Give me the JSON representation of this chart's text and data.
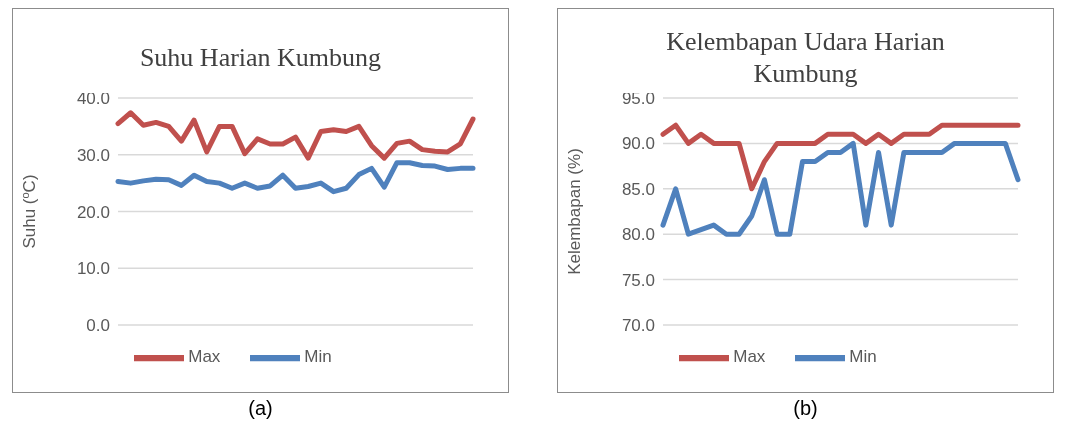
{
  "chart_data": [
    {
      "type": "line",
      "title": "Suhu Harian Kumbung",
      "ylabel": "Suhu ($^{o}$C)",
      "annotations": [
        "(a)"
      ],
      "categories": [
        null,
        null,
        null,
        null,
        null,
        null,
        null,
        null,
        null,
        null,
        null,
        null,
        null,
        null,
        null,
        null,
        null,
        null,
        null,
        null,
        null,
        null,
        null,
        null,
        null,
        null,
        null,
        null,
        null
      ],
      "series": [
        {
          "name": "Min",
          "color": "#4f81bd",
          "values": [
            25.3,
            25.0,
            25.4,
            25.7,
            25.6,
            24.6,
            26.4,
            25.3,
            25.0,
            24.1,
            25.0,
            24.1,
            24.5,
            26.4,
            24.1,
            24.4,
            25.0,
            23.5,
            24.1,
            26.5,
            27.6,
            24.3,
            28.6,
            28.6,
            28.1,
            28.0,
            27.4,
            27.6,
            27.6
          ]
        },
        {
          "name": "Max",
          "color": "#c0504d",
          "values": [
            35.5,
            37.4,
            35.2,
            35.7,
            35.0,
            32.4,
            36.1,
            30.5,
            35.0,
            35.0,
            30.2,
            32.8,
            31.9,
            31.9,
            33.1,
            29.4,
            34.1,
            34.4,
            34.1,
            35.0,
            31.6,
            29.4,
            32.0,
            32.4,
            30.9,
            30.6,
            30.5,
            31.9,
            36.3
          ]
        }
      ],
      "ylim": [
        0,
        40
      ],
      "yticks": [
        {
          "value": 0,
          "label": "0.0"
        },
        {
          "value": 10,
          "label": "10.0"
        },
        {
          "value": 20,
          "label": "20.0"
        },
        {
          "value": 30,
          "label": "30.0"
        },
        {
          "value": 40,
          "label": "40.0"
        }
      ],
      "grid": "y",
      "legend": "bottom",
      "tick_labels": "y"
    },
    {
      "type": "line",
      "title": "Kelembapan Udara Harian Kumbung",
      "ylabel": "Kelembapan (%)",
      "annotations": [
        "(b)"
      ],
      "categories": [
        null,
        null,
        null,
        null,
        null,
        null,
        null,
        null,
        null,
        null,
        null,
        null,
        null,
        null,
        null,
        null,
        null,
        null,
        null,
        null,
        null,
        null,
        null,
        null,
        null,
        null,
        null,
        null,
        null
      ],
      "series": [
        {
          "name": "Min",
          "color": "#4f81bd",
          "values": [
            81,
            85,
            80,
            80.5,
            81,
            80,
            80,
            82,
            86,
            80,
            80,
            88,
            88,
            89,
            89,
            90,
            81,
            89,
            81,
            89,
            89,
            89,
            89,
            90,
            90,
            90,
            90,
            90,
            86
          ]
        },
        {
          "name": "Max",
          "color": "#c0504d",
          "values": [
            91,
            92,
            90,
            91,
            90,
            90,
            90,
            85,
            88,
            90,
            90,
            90,
            90,
            91,
            91,
            91,
            90,
            91,
            90,
            91,
            91,
            91,
            92,
            92,
            92,
            92,
            92,
            92,
            92
          ]
        }
      ],
      "ylim": [
        70,
        95
      ],
      "yticks": [
        {
          "value": 70,
          "label": "70.0"
        },
        {
          "value": 75,
          "label": "75.0"
        },
        {
          "value": 80,
          "label": "80.0"
        },
        {
          "value": 85,
          "label": "85.0"
        },
        {
          "value": 90,
          "label": "90.0"
        },
        {
          "value": 95,
          "label": "95.0"
        }
      ],
      "grid": "y",
      "legend": "bottom",
      "tick_labels": "y"
    }
  ]
}
